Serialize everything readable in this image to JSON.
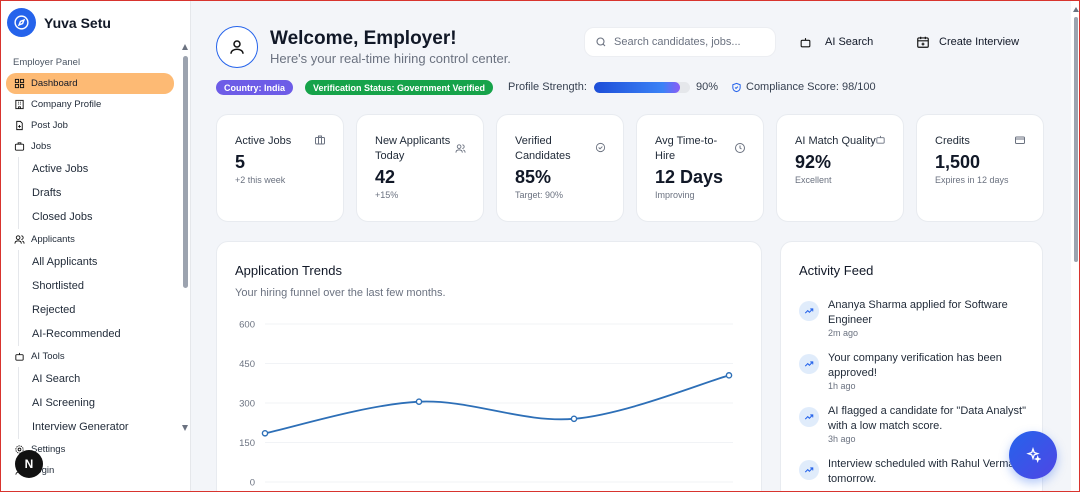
{
  "brand": {
    "name": "Yuva Setu"
  },
  "sidebar": {
    "panel_label": "Employer Panel",
    "items": [
      {
        "label": "Dashboard",
        "icon": "grid-icon",
        "active": true
      },
      {
        "label": "Company Profile",
        "icon": "building-icon"
      },
      {
        "label": "Post Job",
        "icon": "file-plus-icon"
      },
      {
        "label": "Jobs",
        "icon": "briefcase-icon",
        "children": [
          "Active Jobs",
          "Drafts",
          "Closed Jobs"
        ]
      },
      {
        "label": "Applicants",
        "icon": "users-icon",
        "children": [
          "All Applicants",
          "Shortlisted",
          "Rejected",
          "AI-Recommended"
        ]
      },
      {
        "label": "AI Tools",
        "icon": "bot-icon",
        "children": [
          "AI Search",
          "AI Screening",
          "Interview Generator"
        ]
      },
      {
        "label": "Settings",
        "icon": "gear-icon"
      },
      {
        "label": "Login",
        "icon": "user-icon"
      }
    ],
    "badge": "N"
  },
  "header": {
    "title": "Welcome, Employer!",
    "subtitle": "Here's your real-time hiring control center.",
    "search_placeholder": "Search candidates, jobs...",
    "ai_search_label": "AI Search",
    "create_interview_label": "Create Interview"
  },
  "status": {
    "country": "Country: India",
    "verification": "Verification Status: Government Verified",
    "strength_label": "Profile Strength:",
    "strength_value": "90%",
    "strength_fraction": 0.9,
    "compliance": "Compliance Score: 98/100"
  },
  "cards": [
    {
      "title": "Active Jobs",
      "value": "5",
      "note": "+2 this week",
      "icon": "briefcase-icon"
    },
    {
      "title": "New Applicants Today",
      "value": "42",
      "note": "+15%",
      "icon": "users-icon"
    },
    {
      "title": "Verified Candidates",
      "value": "85%",
      "note": "Target: 90%",
      "icon": "check-circle-icon"
    },
    {
      "title": "Avg Time-to-Hire",
      "value": "12 Days",
      "note": "Improving",
      "icon": "clock-icon"
    },
    {
      "title": "AI Match Quality",
      "value": "92%",
      "note": "Excellent",
      "icon": "bot-icon"
    },
    {
      "title": "Credits",
      "value": "1,500",
      "note": "Expires in 12 days",
      "icon": "credit-card-icon"
    }
  ],
  "trends": {
    "title": "Application Trends",
    "subtitle": "Your hiring funnel over the last few months."
  },
  "chart_data": {
    "type": "line",
    "yticks": [
      "600",
      "450",
      "300",
      "150",
      "0"
    ],
    "ylim": [
      0,
      600
    ],
    "series": [
      {
        "values": [
          185,
          305,
          240,
          405
        ]
      }
    ],
    "color": "#2d6fb7"
  },
  "activity": {
    "title": "Activity Feed",
    "items": [
      {
        "text": "Ananya Sharma applied for Software Engineer",
        "time": "2m ago"
      },
      {
        "text": "Your company verification has been approved!",
        "time": "1h ago"
      },
      {
        "text": "AI flagged a candidate for \"Data Analyst\" with a low match score.",
        "time": "3h ago"
      },
      {
        "text": "Interview scheduled with Rahul Verma for tomorrow.",
        "time": ""
      }
    ]
  },
  "colors": {
    "accent": "#2563eb",
    "active_nav": "#fdba74",
    "country_pill": "#6d5ce7",
    "verified_pill": "#16a34a"
  }
}
